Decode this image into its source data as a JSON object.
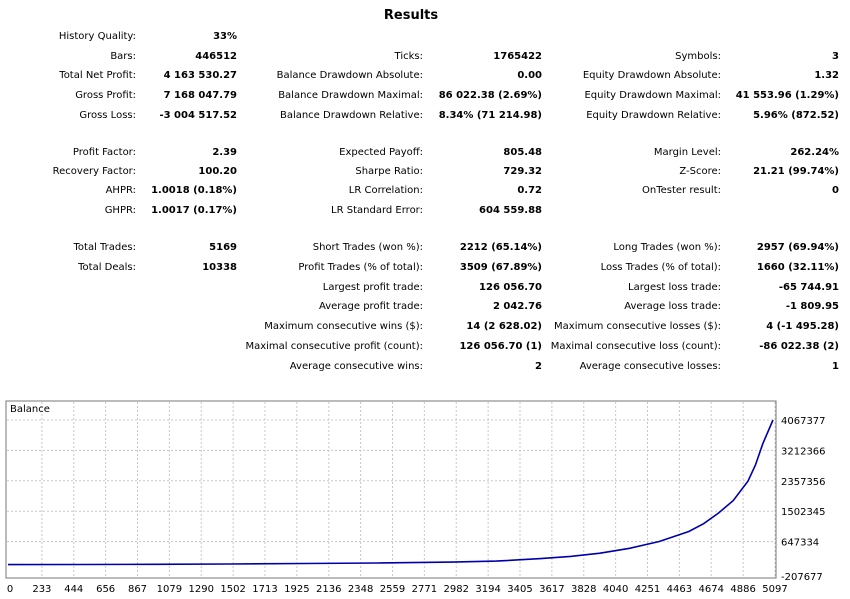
{
  "report": {
    "title": "Results",
    "history_quality": {
      "label": "History Quality:",
      "value": "33%"
    },
    "col1": [
      {
        "label": "Bars:",
        "value": "446512"
      },
      {
        "label": "Total Net Profit:",
        "value": "4 163 530.27"
      },
      {
        "label": "Gross Profit:",
        "value": "7 168 047.79"
      },
      {
        "label": "Gross Loss:",
        "value": "-3 004 517.52"
      },
      {
        "label": "Profit Factor:",
        "value": "2.39"
      },
      {
        "label": "Recovery Factor:",
        "value": "100.20"
      },
      {
        "label": "AHPR:",
        "value": "1.0018 (0.18%)"
      },
      {
        "label": "GHPR:",
        "value": "1.0017 (0.17%)"
      },
      {
        "label": "Total Trades:",
        "value": "5169"
      },
      {
        "label": "Total Deals:",
        "value": "10338"
      }
    ],
    "col2": [
      {
        "label": "Ticks:",
        "value": "1765422"
      },
      {
        "label": "Balance Drawdown Absolute:",
        "value": "0.00"
      },
      {
        "label": "Balance Drawdown Maximal:",
        "value": "86 022.38 (2.69%)"
      },
      {
        "label": "Balance Drawdown Relative:",
        "value": "8.34% (71 214.98)"
      },
      {
        "label": "Expected Payoff:",
        "value": "805.48"
      },
      {
        "label": "Sharpe Ratio:",
        "value": "729.32"
      },
      {
        "label": "LR Correlation:",
        "value": "0.72"
      },
      {
        "label": "LR Standard Error:",
        "value": "604 559.88"
      },
      {
        "label": "Short Trades (won %):",
        "value": "2212 (65.14%)"
      },
      {
        "label": "Profit Trades (% of total):",
        "value": "3509 (67.89%)"
      },
      {
        "label": "Largest profit trade:",
        "value": "126 056.70"
      },
      {
        "label": "Average profit trade:",
        "value": "2 042.76"
      },
      {
        "label": "Maximum consecutive wins ($):",
        "value": "14 (2 628.02)"
      },
      {
        "label": "Maximal consecutive profit (count):",
        "value": "126 056.70 (1)"
      },
      {
        "label": "Average consecutive wins:",
        "value": "2"
      }
    ],
    "col3": [
      {
        "label": "Symbols:",
        "value": "3"
      },
      {
        "label": "Equity Drawdown Absolute:",
        "value": "1.32"
      },
      {
        "label": "Equity Drawdown Maximal:",
        "value": "41 553.96 (1.29%)"
      },
      {
        "label": "Equity Drawdown Relative:",
        "value": "5.96% (872.52)"
      },
      {
        "label": "Margin Level:",
        "value": "262.24%"
      },
      {
        "label": "Z-Score:",
        "value": "21.21 (99.74%)"
      },
      {
        "label": "OnTester result:",
        "value": "0"
      },
      {
        "label": "Long Trades (won %):",
        "value": "2957 (69.94%)"
      },
      {
        "label": "Loss Trades (% of total):",
        "value": "1660 (32.11%)"
      },
      {
        "label": "Largest loss trade:",
        "value": "-65 744.91"
      },
      {
        "label": "Average loss trade:",
        "value": "-1 809.95"
      },
      {
        "label": "Maximum consecutive losses ($):",
        "value": "4 (-1 495.28)"
      },
      {
        "label": "Maximal consecutive loss (count):",
        "value": "-86 022.38 (2)"
      },
      {
        "label": "Average consecutive losses:",
        "value": "1"
      }
    ]
  },
  "chart_data": {
    "type": "line",
    "title": "Balance",
    "line_color": "#0000aa",
    "grid": true,
    "x_ticks": [
      "0",
      "233",
      "444",
      "656",
      "867",
      "1079",
      "1290",
      "1502",
      "1713",
      "1925",
      "2136",
      "2348",
      "2559",
      "2771",
      "2982",
      "3194",
      "3405",
      "3617",
      "3828",
      "4040",
      "4251",
      "4463",
      "4674",
      "4886",
      "5097"
    ],
    "y_ticks": [
      "4067377",
      "3212366",
      "2357356",
      "1502345",
      "647334",
      "-207677"
    ],
    "ylim": [
      -207677,
      4067377
    ],
    "xlim": [
      0,
      5169
    ],
    "series": [
      {
        "x": [
          0,
          500,
          1000,
          1500,
          2000,
          2500,
          3000,
          3300,
          3600,
          3800,
          4000,
          4200,
          4400,
          4600,
          4700,
          4800,
          4900,
          5000,
          5050,
          5100,
          5169
        ],
        "values": [
          0,
          4000,
          10000,
          18000,
          30000,
          45000,
          70000,
          100000,
          170000,
          230000,
          320000,
          460000,
          650000,
          930000,
          1150000,
          1450000,
          1800000,
          2350000,
          2800000,
          3400000,
          4067377
        ]
      }
    ]
  }
}
